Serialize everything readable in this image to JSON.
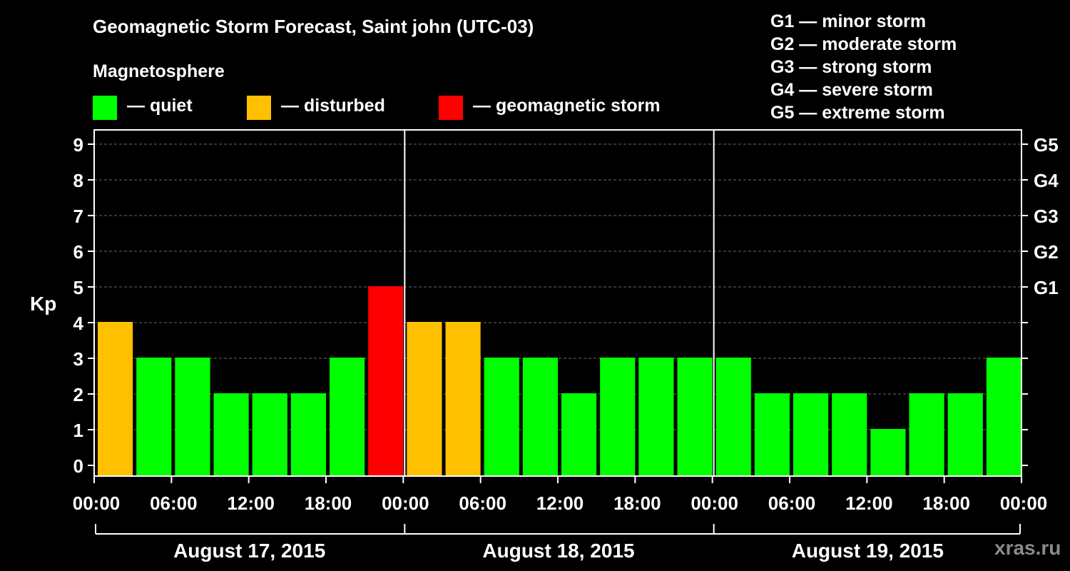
{
  "chart_data": {
    "type": "bar",
    "title": "Geomagnetic Storm Forecast, Saint john (UTC-03)",
    "subtitle": "Magnetosphere",
    "ylabel": "Kp",
    "ylim": [
      0,
      9
    ],
    "yticks": [
      "0",
      "1",
      "2",
      "3",
      "4",
      "5",
      "6",
      "7",
      "8",
      "9"
    ],
    "right_ticks": [
      {
        "kp": 5,
        "label": "G1"
      },
      {
        "kp": 6,
        "label": "G2"
      },
      {
        "kp": 7,
        "label": "G3"
      },
      {
        "kp": 8,
        "label": "G4"
      },
      {
        "kp": 9,
        "label": "G5"
      }
    ],
    "xtick_labels": [
      "00:00",
      "06:00",
      "12:00",
      "18:00",
      "00:00",
      "06:00",
      "12:00",
      "18:00",
      "00:00",
      "06:00",
      "12:00",
      "18:00",
      "00:00"
    ],
    "days": [
      "August 17, 2015",
      "August 18, 2015",
      "August 19, 2015"
    ],
    "values": [
      4,
      3,
      3,
      2,
      2,
      2,
      3,
      5,
      4,
      4,
      3,
      3,
      2,
      3,
      3,
      3,
      3,
      2,
      2,
      2,
      1,
      2,
      2,
      3
    ],
    "legend": [
      {
        "label": "— quiet",
        "color": "#00ff00"
      },
      {
        "label": "— disturbed",
        "color": "#ffc000"
      },
      {
        "label": "— geomagnetic storm",
        "color": "#ff0000"
      }
    ],
    "storm_scale": [
      "G1 — minor storm",
      "G2 — moderate storm",
      "G3 — strong storm",
      "G4 — severe storm",
      "G5 — extreme storm"
    ]
  },
  "watermark": "xras.ru"
}
